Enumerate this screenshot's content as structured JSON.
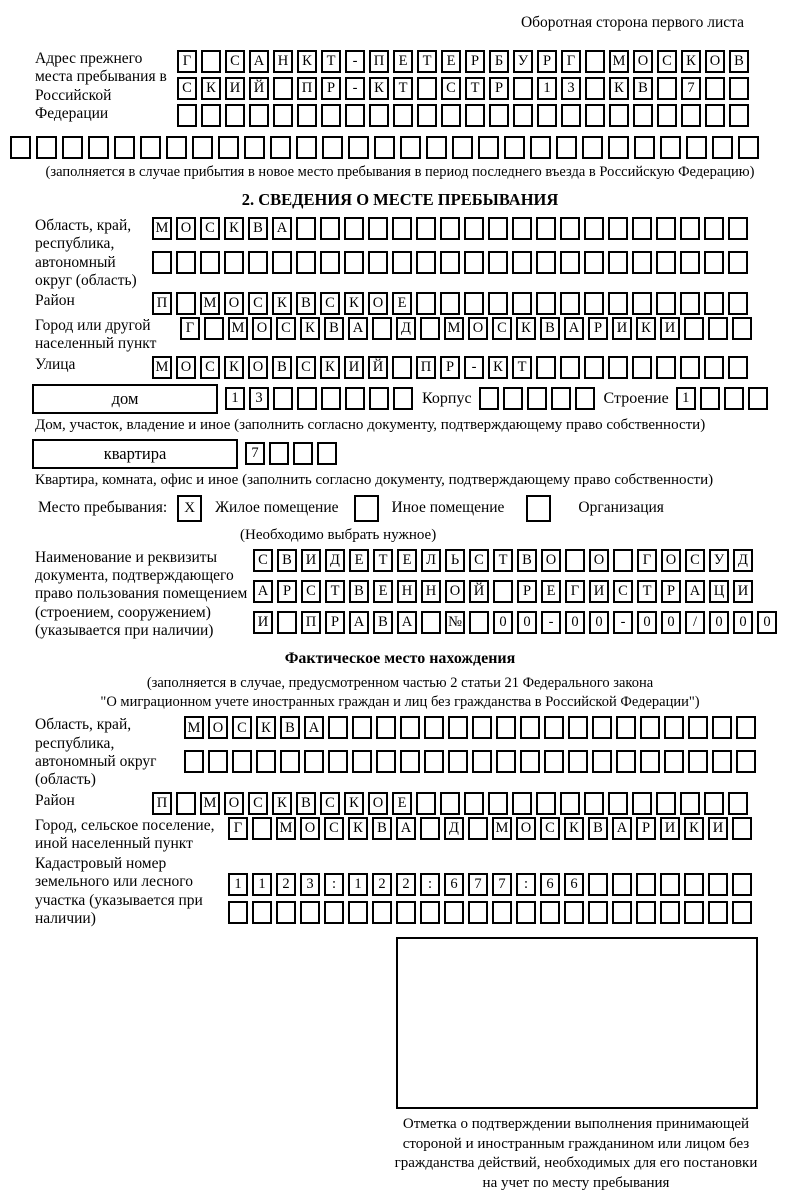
{
  "page": {
    "corner_note": "Оборотная сторона первого листа"
  },
  "prev_address": {
    "label": "Адрес прежнего места пребывания в Российской Федерации",
    "row1": "Г САНКТ-ПЕТЕРБУРГ МОСКОВ",
    "row2": "СКИЙ ПР-КТ СТР 13 КВ 7",
    "row3": "",
    "row4": "",
    "note": "(заполняется в случае прибытия в новое место пребывания в период последнего въезда в Российскую Федерацию)"
  },
  "section2": {
    "title": "2. СВЕДЕНИЯ О МЕСТЕ ПРЕБЫВАНИЯ",
    "region": {
      "label": "Область, край, республика, автономный округ (область)",
      "row1": "МОСКВА",
      "row2": ""
    },
    "district": {
      "label": "Район",
      "row1": "П МОСКВСКОЕ"
    },
    "city": {
      "label": "Город или другой населенный пункт",
      "row1": "Г МОСКВА Д МОСКВАРИКИ"
    },
    "street": {
      "label": "Улица",
      "row1": "МОСКОВСКИЙ ПР-КТ"
    },
    "house": {
      "box_label": "дом",
      "cells": "13",
      "korpus_label": "Корпус",
      "korpus_cells": "",
      "stroenie_label": "Строение",
      "stroenie_cells": "1",
      "caption": "Дом, участок, владение и иное (заполнить согласно документу, подтверждающему право собственности)"
    },
    "apartment": {
      "box_label": "квартира",
      "cells": "7",
      "caption": "Квартира, комната, офис и иное (заполнить согласно документу, подтверждающему право собственности)"
    },
    "stay_type": {
      "label": "Место пребывания:",
      "options": [
        {
          "mark": "X",
          "label": "Жилое помещение"
        },
        {
          "mark": "",
          "label": "Иное помещение"
        },
        {
          "mark": "",
          "label": "Организация"
        }
      ],
      "note": "(Необходимо выбрать нужное)"
    },
    "document": {
      "label": "Наименование и реквизиты документа, подтверждающего право пользования помещением (строением, сооружением) (указывается при наличии)",
      "row1": "СВИДЕТЕЛЬСТВО О ГОСУД",
      "row2": "АРСТВЕННОЙ РЕГИСТРАЦИ",
      "row3": "И ПРАВА № 00-00-00/000"
    }
  },
  "actual_location": {
    "title": "Фактическое место нахождения",
    "note_line1": "(заполняется в случае, предусмотренном частью 2 статьи 21 Федерального закона",
    "note_line2": "\"О миграционном учете иностранных граждан и лиц без гражданства в Российской Федерации\")",
    "region": {
      "label": "Область, край, республика, автономный округ (область)",
      "row1": "МОСКВА",
      "row2": ""
    },
    "district": {
      "label": "Район",
      "row1": "П МОСКВСКОЕ"
    },
    "city": {
      "label": "Город, сельское поселение, иной населенный пункт",
      "row1": "Г МОСКВА Д МОСКВАРИКИ"
    },
    "cadastral": {
      "label": "Кадастровый номер земельного или лесного участка (указывается при наличии)",
      "row1": "1123:122:677:66",
      "row2": ""
    }
  },
  "stamp": {
    "lines": [
      "Отметка о подтверждении выполнения принимающей",
      "стороной и иностранным гражданином или лицом без",
      "гражданства действий, необходимых для его постановки",
      "на учет по месту пребывания"
    ]
  }
}
